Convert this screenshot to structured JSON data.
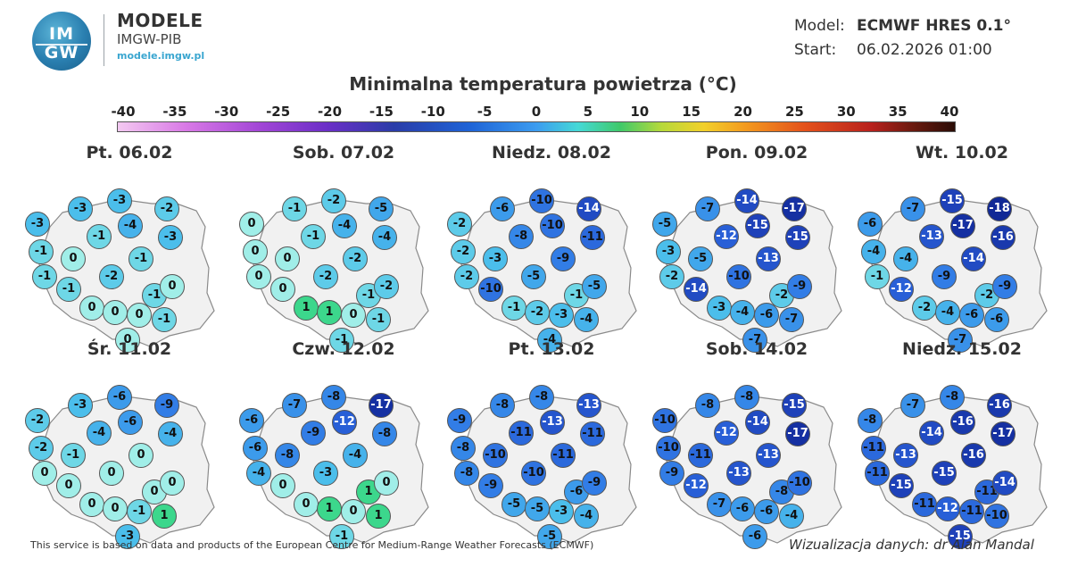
{
  "header": {
    "logo_line1": "IM",
    "logo_line2": "GW",
    "brand_name": "MODELE",
    "brand_sub": "IMGW-PIB",
    "brand_url": "modele.imgw.pl",
    "model_label": "Model:",
    "model_value": "ECMWF HRES 0.1°",
    "start_label": "Start:",
    "start_value": "06.02.2026 01:00"
  },
  "map_title": "Minimalna temperatura powietrza (°C)",
  "scale": {
    "ticks": [
      "-40",
      "-35",
      "-30",
      "-25",
      "-20",
      "-15",
      "-10",
      "-5",
      "0",
      "5",
      "10",
      "15",
      "20",
      "25",
      "30",
      "35",
      "40"
    ]
  },
  "panels": [
    {
      "day": "Pt. 06.02",
      "values": [
        -3,
        -3,
        -2,
        -3,
        -4,
        -1,
        -3,
        -1,
        0,
        -1,
        -1,
        -2,
        -1,
        0,
        -1,
        0,
        0,
        0,
        -1,
        0
      ]
    },
    {
      "day": "Sob. 07.02",
      "values": [
        -1,
        -2,
        -5,
        0,
        -4,
        -1,
        -4,
        0,
        0,
        -2,
        0,
        -2,
        -1,
        -2,
        0,
        1,
        1,
        0,
        -1,
        -1
      ]
    },
    {
      "day": "Niedz. 08.02",
      "values": [
        -6,
        -10,
        -14,
        -2,
        -10,
        -8,
        -11,
        -2,
        -3,
        -9,
        -2,
        -5,
        -1,
        -5,
        -10,
        -1,
        -2,
        -3,
        -4,
        -4
      ]
    },
    {
      "day": "Pon. 09.02",
      "values": [
        -7,
        -14,
        -17,
        -5,
        -15,
        -12,
        -15,
        -3,
        -5,
        -13,
        -2,
        -10,
        -2,
        -9,
        -14,
        -3,
        -4,
        -6,
        -7,
        -7
      ]
    },
    {
      "day": "Wt. 10.02",
      "values": [
        -7,
        -15,
        -18,
        -6,
        -17,
        -13,
        -16,
        -4,
        -4,
        -14,
        -1,
        -9,
        -2,
        -9,
        -12,
        -2,
        -4,
        -6,
        -6,
        -7
      ]
    },
    {
      "day": "Śr. 11.02",
      "values": [
        -3,
        -6,
        -9,
        -2,
        -6,
        -4,
        -4,
        -2,
        -1,
        0,
        0,
        0,
        0,
        0,
        0,
        0,
        0,
        -1,
        1,
        -3
      ]
    },
    {
      "day": "Czw. 12.02",
      "values": [
        -7,
        -8,
        -17,
        -6,
        -12,
        -9,
        -8,
        -6,
        -8,
        -4,
        -4,
        -3,
        1,
        0,
        0,
        0,
        1,
        0,
        1,
        -1
      ]
    },
    {
      "day": "Pt. 13.02",
      "values": [
        -8,
        -8,
        -13,
        -9,
        -13,
        -11,
        -11,
        -8,
        -10,
        -11,
        -8,
        -10,
        -6,
        -9,
        -9,
        -5,
        -5,
        -3,
        -4,
        -5
      ]
    },
    {
      "day": "Sob. 14.02",
      "values": [
        -8,
        -8,
        -15,
        -10,
        -14,
        -12,
        -17,
        -10,
        -11,
        -13,
        -9,
        -13,
        -8,
        -10,
        -12,
        -7,
        -6,
        -6,
        -4,
        -6
      ]
    },
    {
      "day": "Niedz. 15.02",
      "values": [
        -7,
        -8,
        -16,
        -8,
        -16,
        -14,
        -17,
        -11,
        -13,
        -16,
        -11,
        -15,
        -11,
        -14,
        -15,
        -11,
        -12,
        -11,
        -10,
        -15
      ]
    }
  ],
  "footer": {
    "source": "This service is based on data and products of the European Centre for Medium-Range Weather Forecasts (ECMWF)",
    "credit": "Wizualizacja danych: dr Alan Mandal"
  }
}
